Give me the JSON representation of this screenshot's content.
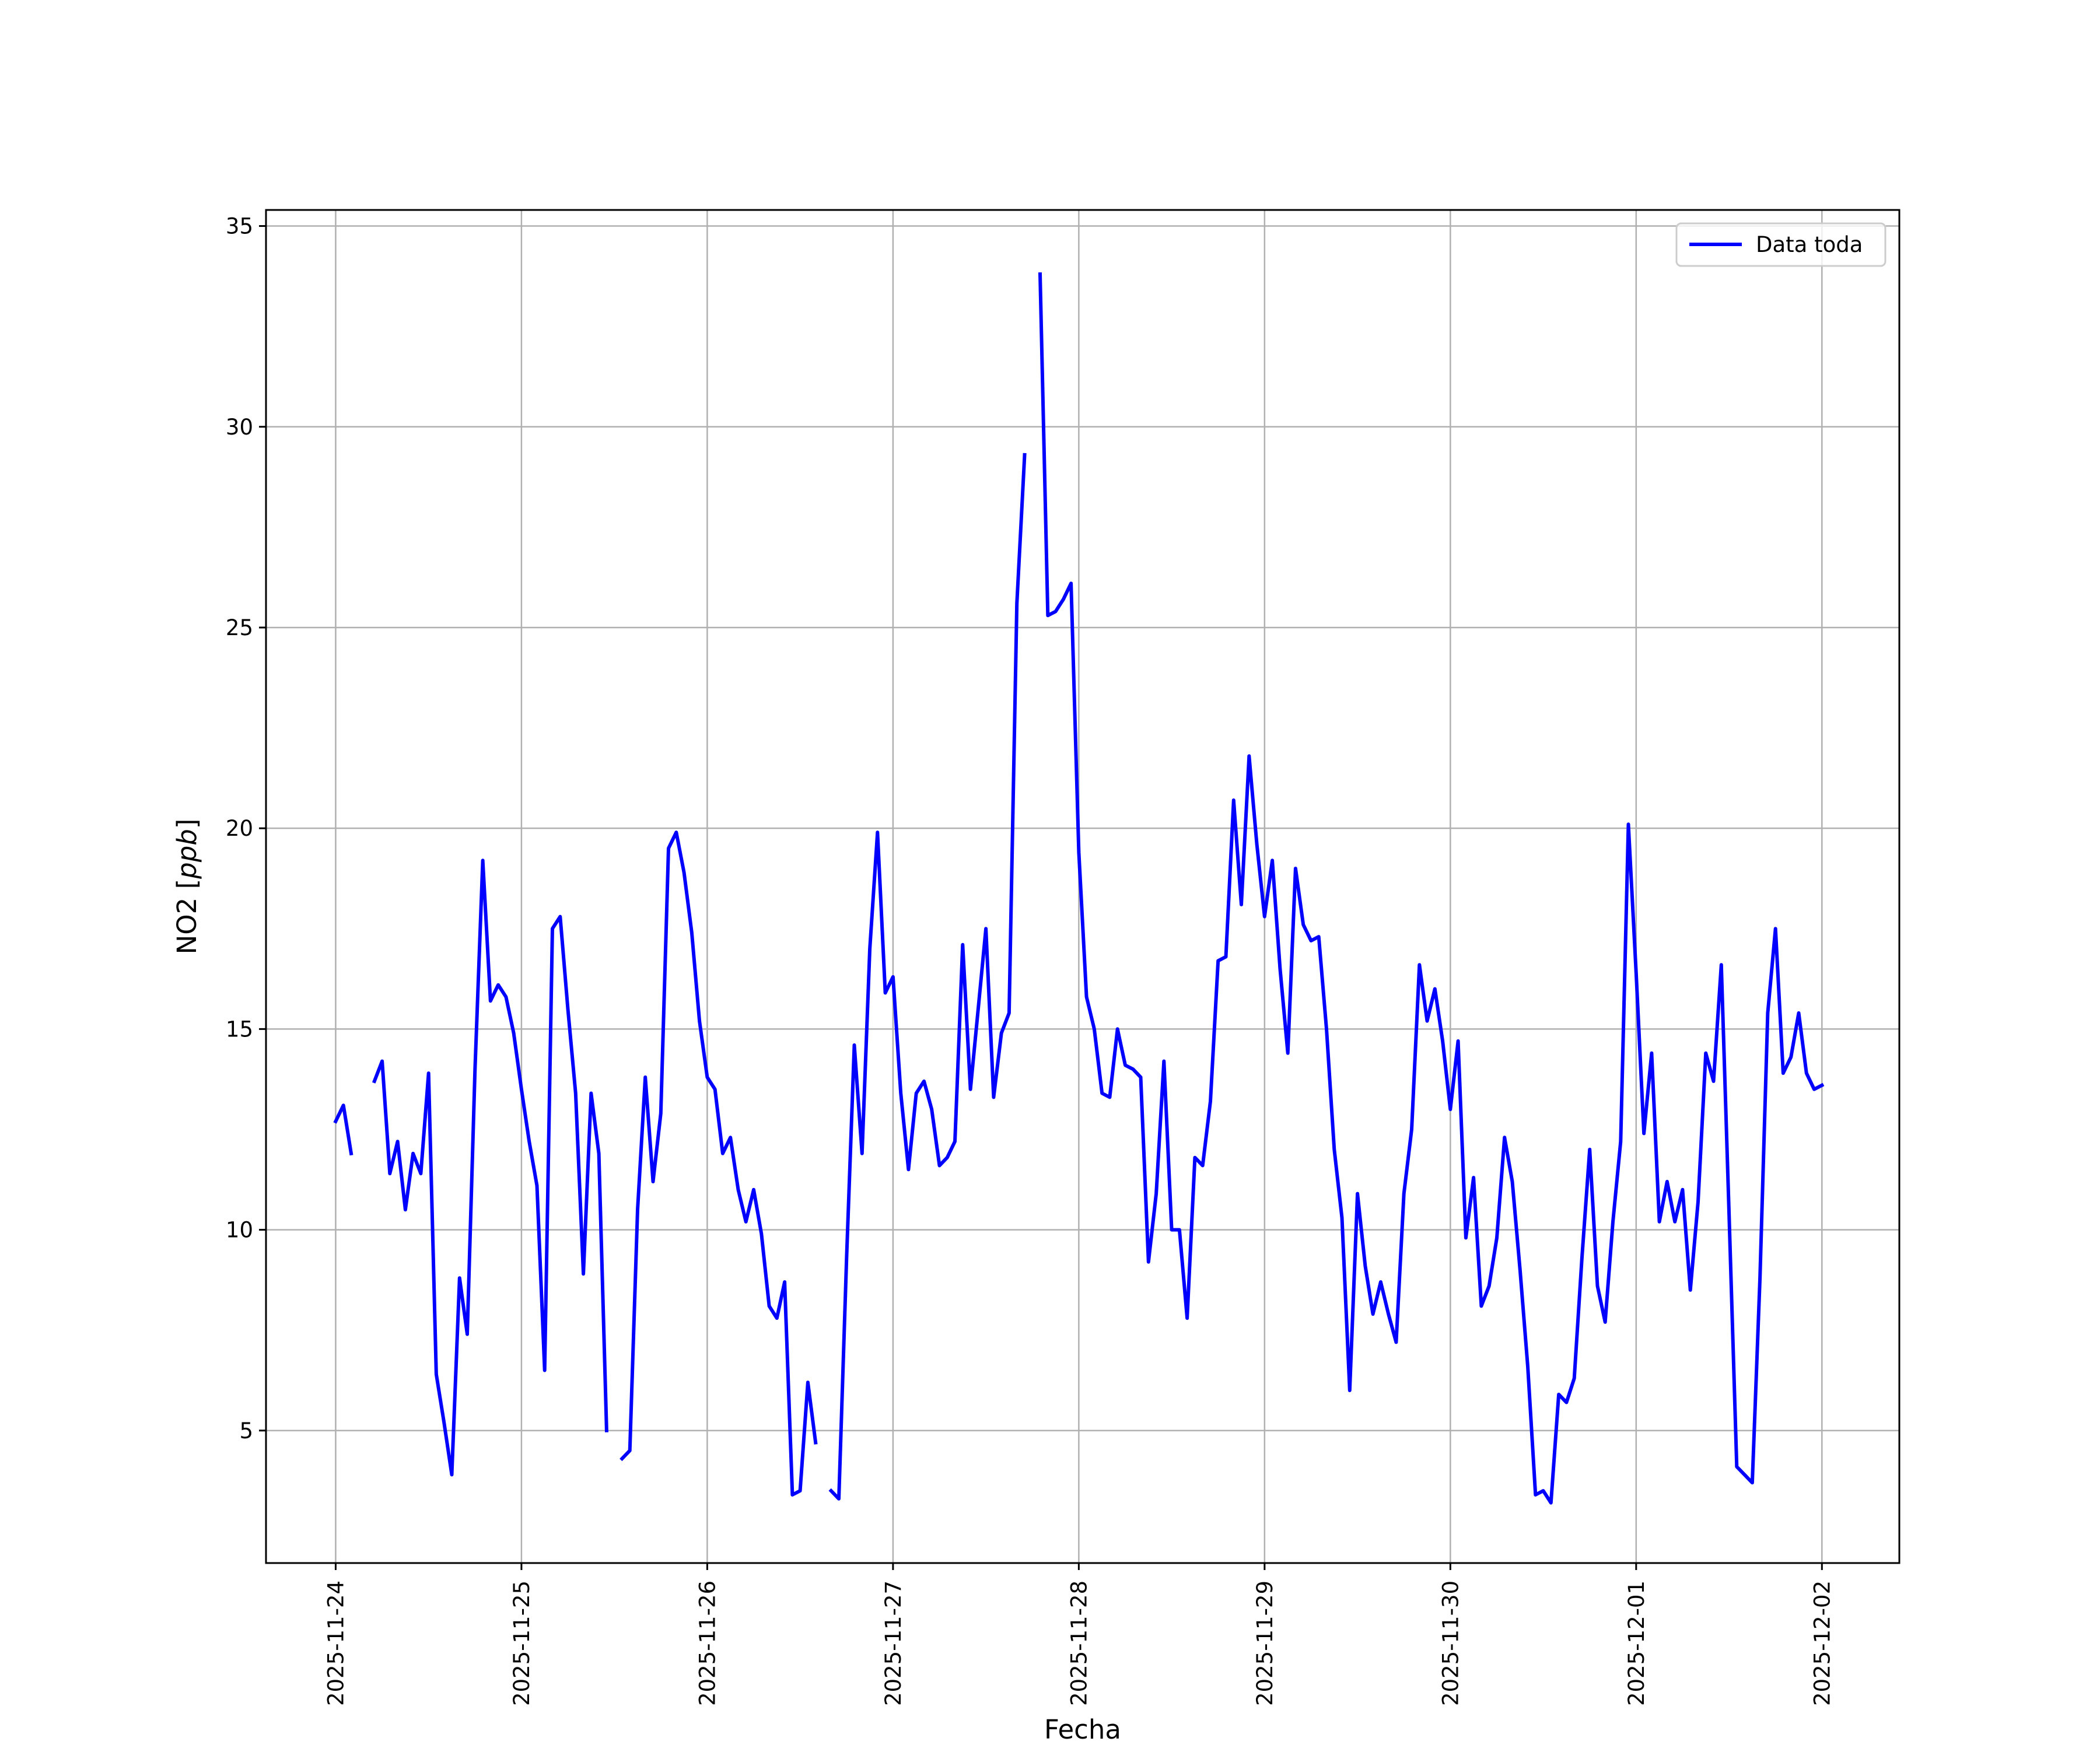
{
  "chart_data": {
    "type": "line",
    "title": "",
    "xlabel": "Fecha",
    "ylabel_prefix": "NO2 [",
    "ylabel_unit": "ppb",
    "ylabel_suffix": "]",
    "x_ticks": [
      "2025-11-24",
      "2025-11-25",
      "2025-11-26",
      "2025-11-27",
      "2025-11-28",
      "2025-11-29",
      "2025-11-30",
      "2025-12-01",
      "2025-12-02"
    ],
    "y_ticks": [
      5,
      10,
      15,
      20,
      25,
      30,
      35
    ],
    "xlim": [
      "2025-11-23 15:00",
      "2025-12-02 10:00"
    ],
    "ylim": [
      1.7,
      35.4
    ],
    "grid": true,
    "legend_position": "top-right",
    "colors": {
      "series": "#0000ff",
      "grid": "#b0b0b0",
      "axes": "#000000"
    },
    "series": [
      {
        "name": "Data toda",
        "segments": [
          [
            [
              "2025-11-24 00:00",
              12.7
            ],
            [
              "2025-11-24 01:00",
              13.1
            ],
            [
              "2025-11-24 02:00",
              11.9
            ]
          ],
          [
            [
              "2025-11-24 05:00",
              13.7
            ],
            [
              "2025-11-24 06:00",
              14.2
            ],
            [
              "2025-11-24 07:00",
              11.4
            ],
            [
              "2025-11-24 08:00",
              12.2
            ],
            [
              "2025-11-24 09:00",
              10.5
            ],
            [
              "2025-11-24 10:00",
              11.9
            ],
            [
              "2025-11-24 11:00",
              11.4
            ],
            [
              "2025-11-24 12:00",
              13.9
            ],
            [
              "2025-11-24 13:00",
              6.4
            ],
            [
              "2025-11-24 14:00",
              5.2
            ],
            [
              "2025-11-24 15:00",
              3.9
            ],
            [
              "2025-11-24 16:00",
              8.8
            ],
            [
              "2025-11-24 17:00",
              7.4
            ],
            [
              "2025-11-24 18:00",
              14.0
            ],
            [
              "2025-11-24 19:00",
              19.2
            ],
            [
              "2025-11-24 20:00",
              15.7
            ],
            [
              "2025-11-24 21:00",
              16.1
            ],
            [
              "2025-11-24 22:00",
              15.8
            ],
            [
              "2025-11-24 23:00",
              14.9
            ],
            [
              "2025-11-25 00:00",
              13.5
            ],
            [
              "2025-11-25 01:00",
              12.2
            ],
            [
              "2025-11-25 02:00",
              11.1
            ],
            [
              "2025-11-25 03:00",
              6.5
            ],
            [
              "2025-11-25 04:00",
              17.5
            ],
            [
              "2025-11-25 05:00",
              17.8
            ],
            [
              "2025-11-25 06:00",
              15.5
            ],
            [
              "2025-11-25 07:00",
              13.4
            ],
            [
              "2025-11-25 08:00",
              8.9
            ],
            [
              "2025-11-25 09:00",
              13.4
            ],
            [
              "2025-11-25 10:00",
              11.9
            ],
            [
              "2025-11-25 11:00",
              5.0
            ]
          ],
          [
            [
              "2025-11-25 13:00",
              4.3
            ],
            [
              "2025-11-25 14:00",
              4.5
            ],
            [
              "2025-11-25 15:00",
              10.5
            ],
            [
              "2025-11-25 16:00",
              13.8
            ],
            [
              "2025-11-25 17:00",
              11.2
            ],
            [
              "2025-11-25 18:00",
              12.9
            ],
            [
              "2025-11-25 19:00",
              19.5
            ],
            [
              "2025-11-25 20:00",
              19.9
            ],
            [
              "2025-11-25 21:00",
              18.9
            ],
            [
              "2025-11-25 22:00",
              17.4
            ],
            [
              "2025-11-25 23:00",
              15.2
            ],
            [
              "2025-11-26 00:00",
              13.8
            ],
            [
              "2025-11-26 01:00",
              13.5
            ],
            [
              "2025-11-26 02:00",
              11.9
            ],
            [
              "2025-11-26 03:00",
              12.3
            ],
            [
              "2025-11-26 04:00",
              11.0
            ],
            [
              "2025-11-26 05:00",
              10.2
            ],
            [
              "2025-11-26 06:00",
              11.0
            ],
            [
              "2025-11-26 07:00",
              9.9
            ],
            [
              "2025-11-26 08:00",
              8.1
            ],
            [
              "2025-11-26 09:00",
              7.8
            ],
            [
              "2025-11-26 10:00",
              8.7
            ],
            [
              "2025-11-26 11:00",
              3.4
            ],
            [
              "2025-11-26 12:00",
              3.5
            ],
            [
              "2025-11-26 13:00",
              6.2
            ],
            [
              "2025-11-26 14:00",
              4.7
            ]
          ],
          [
            [
              "2025-11-26 16:00",
              3.5
            ],
            [
              "2025-11-26 17:00",
              3.3
            ],
            [
              "2025-11-26 18:00",
              9.3
            ],
            [
              "2025-11-26 19:00",
              14.6
            ],
            [
              "2025-11-26 20:00",
              11.9
            ],
            [
              "2025-11-26 21:00",
              17.0
            ],
            [
              "2025-11-26 22:00",
              19.9
            ],
            [
              "2025-11-26 23:00",
              15.9
            ],
            [
              "2025-11-27 00:00",
              16.3
            ],
            [
              "2025-11-27 01:00",
              13.4
            ],
            [
              "2025-11-27 02:00",
              11.5
            ],
            [
              "2025-11-27 03:00",
              13.4
            ],
            [
              "2025-11-27 04:00",
              13.7
            ],
            [
              "2025-11-27 05:00",
              13.0
            ],
            [
              "2025-11-27 06:00",
              11.6
            ],
            [
              "2025-11-27 07:00",
              11.8
            ],
            [
              "2025-11-27 08:00",
              12.2
            ],
            [
              "2025-11-27 09:00",
              17.1
            ],
            [
              "2025-11-27 10:00",
              13.5
            ],
            [
              "2025-11-27 11:00",
              15.5
            ],
            [
              "2025-11-27 12:00",
              17.5
            ],
            [
              "2025-11-27 13:00",
              13.3
            ],
            [
              "2025-11-27 14:00",
              14.9
            ],
            [
              "2025-11-27 15:00",
              15.4
            ],
            [
              "2025-11-27 16:00",
              25.6
            ],
            [
              "2025-11-27 17:00",
              29.3
            ]
          ],
          [
            [
              "2025-11-27 19:00",
              33.8
            ],
            [
              "2025-11-27 20:00",
              25.3
            ],
            [
              "2025-11-27 21:00",
              25.4
            ],
            [
              "2025-11-27 22:00",
              25.7
            ],
            [
              "2025-11-27 23:00",
              26.1
            ],
            [
              "2025-11-28 00:00",
              19.4
            ],
            [
              "2025-11-28 01:00",
              15.8
            ],
            [
              "2025-11-28 02:00",
              15.0
            ],
            [
              "2025-11-28 03:00",
              13.4
            ],
            [
              "2025-11-28 04:00",
              13.3
            ],
            [
              "2025-11-28 05:00",
              15.0
            ],
            [
              "2025-11-28 06:00",
              14.1
            ],
            [
              "2025-11-28 07:00",
              14.0
            ],
            [
              "2025-11-28 08:00",
              13.8
            ],
            [
              "2025-11-28 09:00",
              9.2
            ],
            [
              "2025-11-28 10:00",
              10.9
            ],
            [
              "2025-11-28 11:00",
              14.2
            ],
            [
              "2025-11-28 12:00",
              10.0
            ],
            [
              "2025-11-28 13:00",
              10.0
            ],
            [
              "2025-11-28 14:00",
              7.8
            ],
            [
              "2025-11-28 15:00",
              11.8
            ],
            [
              "2025-11-28 16:00",
              11.6
            ],
            [
              "2025-11-28 17:00",
              13.2
            ],
            [
              "2025-11-28 18:00",
              16.7
            ],
            [
              "2025-11-28 19:00",
              16.8
            ],
            [
              "2025-11-28 20:00",
              20.7
            ],
            [
              "2025-11-28 21:00",
              18.1
            ],
            [
              "2025-11-28 22:00",
              21.8
            ],
            [
              "2025-11-28 23:00",
              19.6
            ],
            [
              "2025-11-29 00:00",
              17.8
            ],
            [
              "2025-11-29 01:00",
              19.2
            ],
            [
              "2025-11-29 02:00",
              16.5
            ],
            [
              "2025-11-29 03:00",
              14.4
            ],
            [
              "2025-11-29 04:00",
              19.0
            ],
            [
              "2025-11-29 05:00",
              17.6
            ],
            [
              "2025-11-29 06:00",
              17.2
            ],
            [
              "2025-11-29 07:00",
              17.3
            ],
            [
              "2025-11-29 08:00",
              15.0
            ],
            [
              "2025-11-29 09:00",
              12.0
            ],
            [
              "2025-11-29 10:00",
              10.3
            ],
            [
              "2025-11-29 11:00",
              6.0
            ],
            [
              "2025-11-29 12:00",
              10.9
            ],
            [
              "2025-11-29 13:00",
              9.1
            ],
            [
              "2025-11-29 14:00",
              7.9
            ],
            [
              "2025-11-29 15:00",
              8.7
            ],
            [
              "2025-11-29 16:00",
              7.9
            ],
            [
              "2025-11-29 17:00",
              7.2
            ],
            [
              "2025-11-29 18:00",
              10.9
            ],
            [
              "2025-11-29 19:00",
              12.5
            ],
            [
              "2025-11-29 20:00",
              16.6
            ],
            [
              "2025-11-29 21:00",
              15.2
            ],
            [
              "2025-11-29 22:00",
              16.0
            ],
            [
              "2025-11-29 23:00",
              14.7
            ],
            [
              "2025-11-30 00:00",
              13.0
            ],
            [
              "2025-11-30 01:00",
              14.7
            ],
            [
              "2025-11-30 02:00",
              9.8
            ],
            [
              "2025-11-30 03:00",
              11.3
            ],
            [
              "2025-11-30 04:00",
              8.1
            ],
            [
              "2025-11-30 05:00",
              8.6
            ],
            [
              "2025-11-30 06:00",
              9.8
            ],
            [
              "2025-11-30 07:00",
              12.3
            ],
            [
              "2025-11-30 08:00",
              11.2
            ],
            [
              "2025-11-30 09:00",
              9.0
            ],
            [
              "2025-11-30 10:00",
              6.6
            ],
            [
              "2025-11-30 11:00",
              3.4
            ],
            [
              "2025-11-30 12:00",
              3.5
            ],
            [
              "2025-11-30 13:00",
              3.2
            ],
            [
              "2025-11-30 14:00",
              5.9
            ],
            [
              "2025-11-30 15:00",
              5.7
            ],
            [
              "2025-11-30 16:00",
              6.3
            ],
            [
              "2025-11-30 17:00",
              9.3
            ],
            [
              "2025-11-30 18:00",
              12.0
            ],
            [
              "2025-11-30 19:00",
              8.6
            ],
            [
              "2025-11-30 20:00",
              7.7
            ],
            [
              "2025-11-30 21:00",
              10.2
            ],
            [
              "2025-11-30 22:00",
              12.2
            ],
            [
              "2025-11-30 23:00",
              20.1
            ],
            [
              "2025-12-01 00:00",
              16.4
            ],
            [
              "2025-12-01 01:00",
              12.4
            ],
            [
              "2025-12-01 02:00",
              14.4
            ],
            [
              "2025-12-01 03:00",
              10.2
            ],
            [
              "2025-12-01 04:00",
              11.2
            ],
            [
              "2025-12-01 05:00",
              10.2
            ],
            [
              "2025-12-01 06:00",
              11.0
            ],
            [
              "2025-12-01 07:00",
              8.5
            ],
            [
              "2025-12-01 08:00",
              10.7
            ],
            [
              "2025-12-01 09:00",
              14.4
            ],
            [
              "2025-12-01 10:00",
              13.7
            ],
            [
              "2025-12-01 11:00",
              16.6
            ],
            [
              "2025-12-01 12:00",
              10.4
            ],
            [
              "2025-12-01 13:00",
              4.1
            ],
            [
              "2025-12-01 14:00",
              3.9
            ],
            [
              "2025-12-01 15:00",
              3.7
            ],
            [
              "2025-12-01 16:00",
              8.8
            ],
            [
              "2025-12-01 17:00",
              15.4
            ],
            [
              "2025-12-01 18:00",
              17.5
            ],
            [
              "2025-12-01 19:00",
              13.9
            ],
            [
              "2025-12-01 20:00",
              14.3
            ],
            [
              "2025-12-01 21:00",
              15.4
            ],
            [
              "2025-12-01 22:00",
              13.9
            ],
            [
              "2025-12-01 23:00",
              13.5
            ],
            [
              "2025-12-02 00:00",
              13.6
            ]
          ]
        ]
      }
    ]
  }
}
